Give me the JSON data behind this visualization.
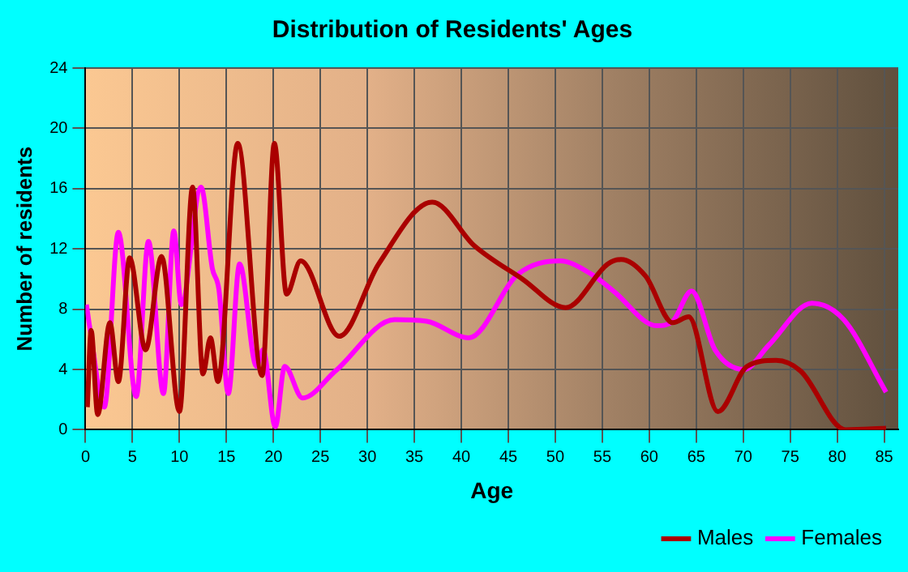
{
  "chart_data": {
    "type": "line",
    "title": "Distribution of Residents' Ages",
    "xlabel": "Age",
    "ylabel": "Number of residents",
    "xlim": [
      0,
      86.5
    ],
    "xticks": [
      0,
      5,
      10,
      15,
      20,
      25,
      30,
      35,
      40,
      45,
      50,
      55,
      60,
      65,
      70,
      75,
      80,
      85
    ],
    "ylim": [
      0,
      24
    ],
    "yticks": [
      0,
      4,
      8,
      12,
      16,
      20,
      24
    ],
    "grid": true,
    "legend": "bottom right",
    "marker": "none",
    "line_style": "solid",
    "series": [
      {
        "name": "Males",
        "color": "#aa0000",
        "x": [
          0.2,
          0.6,
          1.3,
          2.6,
          3.5,
          4.7,
          6.4,
          8.1,
          10.0,
          11.4,
          12.5,
          13.3,
          14.1,
          16.2,
          18.8,
          20.1,
          21.4,
          22.9,
          27.0,
          31.2,
          36.9,
          41.4,
          46.5,
          51.1,
          55.6,
          57.0,
          59.6,
          62.5,
          64.2,
          67.3,
          70.4,
          73.5,
          76.1,
          80.9,
          85.2
        ],
        "values": [
          1.5,
          6.6,
          1.0,
          7.1,
          3.2,
          11.4,
          5.3,
          11.5,
          1.2,
          16.1,
          3.7,
          6.1,
          3.2,
          19.0,
          3.6,
          19.0,
          9.0,
          11.2,
          6.2,
          11.0,
          15.1,
          12.2,
          10.0,
          8.1,
          11.0,
          11.3,
          10.2,
          7.1,
          7.5,
          1.2,
          4.2,
          4.6,
          3.9,
          0,
          0.1
        ]
      },
      {
        "name": "Females",
        "color": "#ff00ff",
        "x": [
          0.1,
          0.5,
          2.0,
          3.5,
          5.4,
          6.7,
          8.3,
          9.4,
          10.2,
          12.3,
          13.5,
          14.2,
          15.2,
          16.4,
          18.2,
          18.9,
          20.2,
          21.2,
          23.1,
          26.6,
          32.9,
          36.3,
          40.8,
          46.0,
          50.5,
          53.9,
          56.2,
          60.8,
          62.5,
          64.5,
          67.0,
          70.1,
          72.7,
          77.3,
          80.7,
          85.2
        ],
        "values": [
          8.3,
          6.6,
          1.5,
          13.1,
          2.2,
          12.5,
          2.4,
          13.2,
          8.3,
          16.1,
          10.7,
          9.3,
          2.4,
          11.0,
          4.2,
          5.3,
          0.2,
          4.2,
          2.1,
          3.9,
          7.3,
          7.2,
          6.1,
          10.3,
          11.2,
          10.3,
          9.2,
          6.9,
          7.2,
          9.2,
          5.3,
          4.0,
          5.6,
          8.4,
          7.3,
          2.5
        ]
      }
    ]
  }
}
